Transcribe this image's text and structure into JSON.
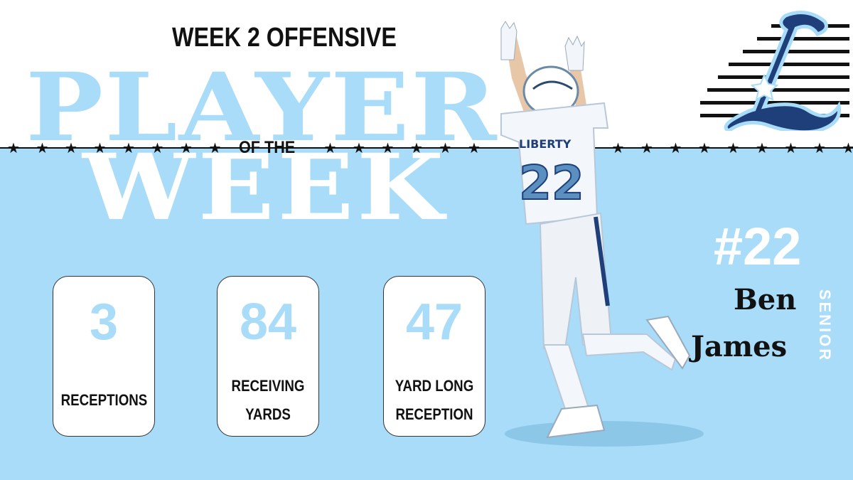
{
  "header": {
    "headline": "WEEK 2 OFFENSIVE",
    "big_word_1": "PLAYER",
    "connector": "OF THE",
    "big_word_2": "WEEK"
  },
  "stats": [
    {
      "value": "3",
      "label_line_1": "RECEPTIONS",
      "label_line_2": ""
    },
    {
      "value": "84",
      "label_line_1": "RECEIVING",
      "label_line_2": "YARDS"
    },
    {
      "value": "47",
      "label_line_1": "YARD LONG",
      "label_line_2": "RECEPTION"
    }
  ],
  "player": {
    "number": "#22",
    "first_name": "Ben",
    "last_name": "James",
    "class_year": "SENIOR",
    "jersey_text": "LIBERTY",
    "jersey_number": "22"
  },
  "colors": {
    "accent": "#a8dcf8",
    "dark": "#111111",
    "navy": "#1f3f7a",
    "white": "#ffffff"
  },
  "icons": {
    "logo": "liberty-l-logo-icon",
    "star": "star-icon"
  }
}
